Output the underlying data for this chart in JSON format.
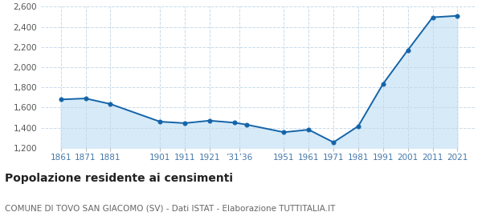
{
  "years": [
    1861,
    1871,
    1881,
    1901,
    1911,
    1921,
    1931,
    1936,
    1951,
    1961,
    1971,
    1981,
    1991,
    2001,
    2011,
    2021
  ],
  "population": [
    1680,
    1690,
    1635,
    1460,
    1445,
    1470,
    1450,
    1430,
    1355,
    1380,
    1255,
    1415,
    1835,
    2170,
    2495,
    2510
  ],
  "ylim": [
    1200,
    2600
  ],
  "xlim": [
    1853,
    2028
  ],
  "yticks": [
    1200,
    1400,
    1600,
    1800,
    2000,
    2200,
    2400,
    2600
  ],
  "xtick_positions": [
    1861,
    1871,
    1881,
    1901,
    1911,
    1921,
    1933,
    1951,
    1961,
    1971,
    1981,
    1991,
    2001,
    2011,
    2021
  ],
  "xtick_labels": [
    "1861",
    "1871",
    "1881",
    "1901",
    "1911",
    "1921",
    "’31’36",
    "1951",
    "1961",
    "1971",
    "1981",
    "1991",
    "2001",
    "2011",
    "2021"
  ],
  "line_color": "#1464a8",
  "fill_color": "#d6eaf8",
  "marker_color": "#1464a8",
  "grid_color": "#c8daea",
  "background_color": "#ffffff",
  "title": "Popolazione residente ai censimenti",
  "subtitle": "COMUNE DI TOVO SAN GIACOMO (SV) - Dati ISTAT - Elaborazione TUTTITALIA.IT",
  "title_fontsize": 10,
  "subtitle_fontsize": 7.5,
  "tick_label_color": "#4477aa",
  "tick_fontsize": 7.5,
  "ytick_label_color": "#555555"
}
